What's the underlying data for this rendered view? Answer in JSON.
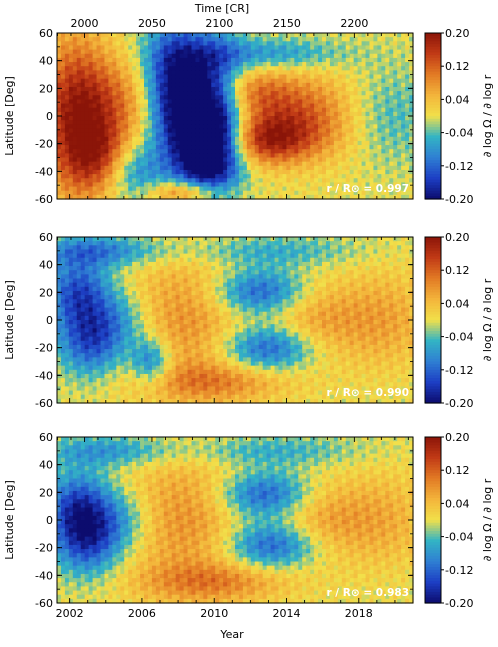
{
  "top_axis": {
    "label": "Time [CR]",
    "tick_values": [
      2000,
      2050,
      2100,
      2150,
      2200
    ],
    "tick_labels": [
      "2000",
      "2050",
      "2100",
      "2150",
      "2200"
    ]
  },
  "bottom_axis": {
    "label": "Year",
    "tick_values": [
      2002,
      2006,
      2010,
      2014,
      2018
    ],
    "tick_labels": [
      "2002",
      "2006",
      "2010",
      "2014",
      "2018"
    ]
  },
  "colorbar": {
    "label": "∂ log Ω / ∂ log r",
    "range": [
      -0.2,
      0.2
    ],
    "tick_values": [
      0.2,
      0.12,
      0.04,
      -0.04,
      -0.12,
      -0.2
    ],
    "tick_labels": [
      "0.20",
      "0.12",
      "0.04",
      "-0.04",
      "-0.12",
      "-0.20"
    ],
    "colors": [
      "#0c0c6e",
      "#1d3fc4",
      "#2f7fd3",
      "#33b4c4",
      "#f2e04a",
      "#f3b43b",
      "#e27a24",
      "#c13a16",
      "#8b1508"
    ]
  },
  "chart_data": [
    {
      "type": "heatmap",
      "ylabel": "Latitude [Deg]",
      "ylim": [
        -60,
        60
      ],
      "yticks": [
        60,
        40,
        20,
        0,
        -20,
        -40,
        -60
      ],
      "ytick_labels": [
        "60",
        "40",
        "20",
        "0",
        "-20",
        "-40",
        "-60"
      ],
      "xlim_year": [
        2001.3,
        2021.0
      ],
      "annotation": "r / R⊙ = 0.997",
      "features": [
        {
          "year": 2002.3,
          "lat": 0,
          "value": 0.18,
          "sy": 1.4,
          "sl": 40
        },
        {
          "year": 2003.8,
          "lat": -30,
          "value": 0.12,
          "sy": 1.2,
          "sl": 18
        },
        {
          "year": 2004.8,
          "lat": 10,
          "value": 0.08,
          "sy": 1.6,
          "sl": 22
        },
        {
          "year": 2005.4,
          "lat": -40,
          "value": -0.1,
          "sy": 1.2,
          "sl": 16
        },
        {
          "year": 2006.4,
          "lat": 0,
          "value": 0.02,
          "sy": 1.2,
          "sl": 30
        },
        {
          "year": 2007.6,
          "lat": 30,
          "value": -0.1,
          "sy": 1.2,
          "sl": 30
        },
        {
          "year": 2008.6,
          "lat": 5,
          "value": -0.2,
          "sy": 1.5,
          "sl": 35
        },
        {
          "year": 2009.7,
          "lat": -30,
          "value": -0.16,
          "sy": 1.2,
          "sl": 22
        },
        {
          "year": 2010.3,
          "lat": 5,
          "value": -0.1,
          "sy": 1.0,
          "sl": 35
        },
        {
          "year": 2011.8,
          "lat": 18,
          "value": 0.08,
          "sy": 1.6,
          "sl": 12
        },
        {
          "year": 2012.8,
          "lat": -18,
          "value": 0.12,
          "sy": 1.6,
          "sl": 12
        },
        {
          "year": 2014.2,
          "lat": 10,
          "value": 0.06,
          "sy": 2.0,
          "sl": 15
        },
        {
          "year": 2014.2,
          "lat": -12,
          "value": 0.08,
          "sy": 2.0,
          "sl": 15
        },
        {
          "year": 2016.5,
          "lat": 0,
          "value": 0.04,
          "sy": 2.5,
          "sl": 25
        },
        {
          "year": 2019.6,
          "lat": 0,
          "value": -0.06,
          "sy": 1.8,
          "sl": 25
        },
        {
          "year": 2013.0,
          "lat": 45,
          "value": -0.08,
          "sy": 3.0,
          "sl": 8
        },
        {
          "year": 2008.5,
          "lat": -55,
          "value": 0.14,
          "sy": 1.5,
          "sl": 6
        }
      ]
    },
    {
      "type": "heatmap",
      "ylabel": "Latitude [Deg]",
      "ylim": [
        -60,
        60
      ],
      "yticks": [
        60,
        40,
        20,
        0,
        -20,
        -40,
        -60
      ],
      "ytick_labels": [
        "60",
        "40",
        "20",
        "0",
        "-20",
        "-40",
        "-60"
      ],
      "xlim_year": [
        2001.3,
        2021.0
      ],
      "annotation": "r / R⊙ = 0.990",
      "features": [
        {
          "year": 2002.5,
          "lat": 20,
          "value": -0.14,
          "sy": 1.3,
          "sl": 18
        },
        {
          "year": 2003.2,
          "lat": -15,
          "value": -0.14,
          "sy": 1.3,
          "sl": 18
        },
        {
          "year": 2005.0,
          "lat": 0,
          "value": -0.06,
          "sy": 1.2,
          "sl": 15
        },
        {
          "year": 2006.5,
          "lat": -30,
          "value": -0.12,
          "sy": 0.8,
          "sl": 12
        },
        {
          "year": 2008.5,
          "lat": 0,
          "value": 0.08,
          "sy": 2.5,
          "sl": 35
        },
        {
          "year": 2012.5,
          "lat": 20,
          "value": -0.14,
          "sy": 1.8,
          "sl": 12
        },
        {
          "year": 2013.0,
          "lat": -20,
          "value": -0.14,
          "sy": 1.8,
          "sl": 12
        },
        {
          "year": 2015.5,
          "lat": 0,
          "value": 0.07,
          "sy": 2.0,
          "sl": 20
        },
        {
          "year": 2019.5,
          "lat": 0,
          "value": 0.06,
          "sy": 1.8,
          "sl": 25
        },
        {
          "year": 2003.5,
          "lat": 50,
          "value": -0.1,
          "sy": 2.5,
          "sl": 8
        },
        {
          "year": 2013.0,
          "lat": 50,
          "value": -0.06,
          "sy": 3.5,
          "sl": 8
        },
        {
          "year": 2010.0,
          "lat": -45,
          "value": 0.08,
          "sy": 3.0,
          "sl": 10
        }
      ]
    },
    {
      "type": "heatmap",
      "ylabel": "Latitude [Deg]",
      "ylim": [
        -60,
        60
      ],
      "yticks": [
        60,
        40,
        20,
        0,
        -20,
        -40,
        -60
      ],
      "ytick_labels": [
        "60",
        "40",
        "20",
        "0",
        "-20",
        "-40",
        "-60"
      ],
      "xlim_year": [
        2001.3,
        2021.0
      ],
      "annotation": "r / R⊙ = 0.983",
      "features": [
        {
          "year": 2002.5,
          "lat": 10,
          "value": -0.14,
          "sy": 1.3,
          "sl": 18
        },
        {
          "year": 2003.0,
          "lat": -15,
          "value": -0.14,
          "sy": 1.3,
          "sl": 18
        },
        {
          "year": 2005.0,
          "lat": 0,
          "value": -0.06,
          "sy": 1.2,
          "sl": 15
        },
        {
          "year": 2008.5,
          "lat": 0,
          "value": 0.08,
          "sy": 2.5,
          "sl": 35
        },
        {
          "year": 2012.8,
          "lat": 18,
          "value": -0.14,
          "sy": 1.8,
          "sl": 12
        },
        {
          "year": 2013.2,
          "lat": -18,
          "value": -0.14,
          "sy": 1.8,
          "sl": 12
        },
        {
          "year": 2015.8,
          "lat": 0,
          "value": 0.07,
          "sy": 2.0,
          "sl": 20
        },
        {
          "year": 2019.5,
          "lat": 0,
          "value": 0.05,
          "sy": 1.8,
          "sl": 25
        },
        {
          "year": 2004.0,
          "lat": 50,
          "value": -0.08,
          "sy": 2.5,
          "sl": 8
        },
        {
          "year": 2013.0,
          "lat": 50,
          "value": -0.06,
          "sy": 3.5,
          "sl": 8
        },
        {
          "year": 2010.0,
          "lat": -45,
          "value": 0.08,
          "sy": 3.0,
          "sl": 10
        }
      ]
    }
  ]
}
